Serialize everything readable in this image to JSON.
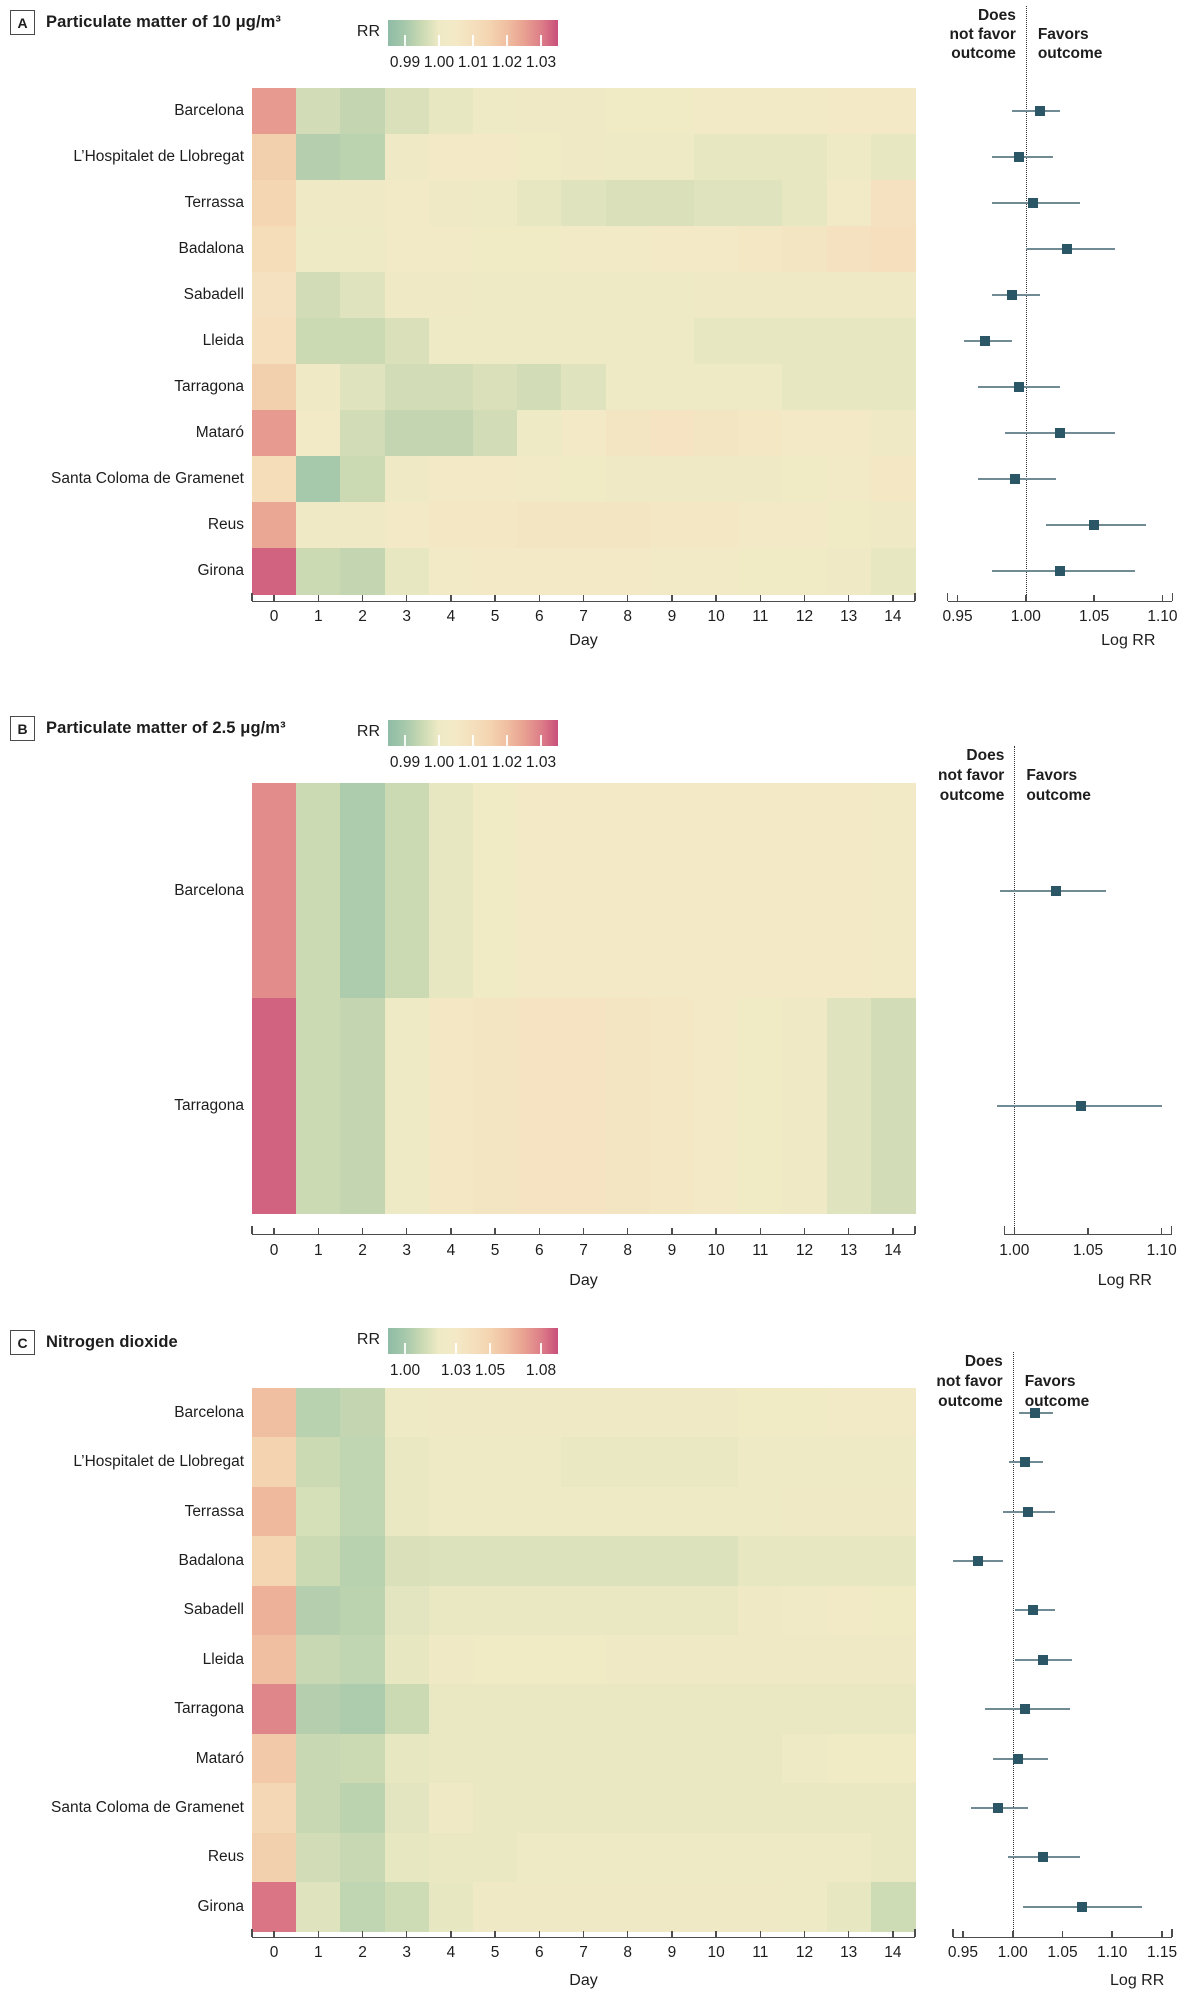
{
  "style": {
    "colormap": [
      [
        0.0,
        "#8fbca6"
      ],
      [
        0.1,
        "#a6c8ab"
      ],
      [
        0.2,
        "#cbdab3"
      ],
      [
        0.3,
        "#eeeac5"
      ],
      [
        0.4,
        "#f4e9c6"
      ],
      [
        0.5,
        "#f5dfbd"
      ],
      [
        0.6,
        "#f4d4b0"
      ],
      [
        0.7,
        "#f0bfa1"
      ],
      [
        0.8,
        "#e9a191"
      ],
      [
        0.9,
        "#dd7f88"
      ],
      [
        1.0,
        "#c94f7b"
      ]
    ],
    "marker_color": "#2a5666",
    "ci_color": "#708b94",
    "axis_color": "#4d4d4d",
    "dotted_color": "#333333",
    "text_color": "#1d1d1d"
  },
  "chart_data": [
    {
      "type": "heatmap",
      "tag": "A",
      "title": "Particulate matter of 10 μg/m³",
      "xlabel": "Day",
      "days": [
        0,
        1,
        2,
        3,
        4,
        5,
        6,
        7,
        8,
        9,
        10,
        11,
        12,
        13,
        14
      ],
      "scale": {
        "label": "RR",
        "domain": [
          0.985,
          1.035
        ],
        "ticks": [
          0.99,
          1.0,
          1.01,
          1.02,
          1.03
        ],
        "tick_labels": [
          "0.99",
          "1.00",
          "1.01",
          "1.02",
          "1.03"
        ]
      },
      "cities": [
        "Barcelona",
        "L’Hospitalet de Llobregat",
        "Terrassa",
        "Badalona",
        "Sabadell",
        "Lleida",
        "Tarragona",
        "Mataró",
        "Santa Coloma de Gramenet",
        "Reus",
        "Girona"
      ],
      "rr_matrix": [
        [
          1.026,
          0.996,
          0.994,
          0.997,
          0.999,
          1.0,
          1.001,
          1.001,
          1.002,
          1.002,
          1.003,
          1.003,
          1.003,
          1.004,
          1.004
        ],
        [
          1.016,
          0.992,
          0.993,
          1.001,
          1.004,
          1.004,
          1.002,
          1.001,
          1.0,
          1.0,
          0.999,
          0.999,
          0.999,
          1.0,
          0.999
        ],
        [
          1.014,
          1.001,
          1.001,
          1.003,
          1.001,
          1.0,
          0.999,
          0.998,
          0.997,
          0.997,
          0.998,
          0.998,
          0.999,
          1.003,
          1.009
        ],
        [
          1.011,
          1.0,
          1.0,
          1.003,
          1.003,
          1.002,
          1.002,
          1.003,
          1.003,
          1.004,
          1.005,
          1.006,
          1.007,
          1.009,
          1.01
        ],
        [
          1.009,
          0.996,
          0.998,
          1.001,
          1.001,
          1.0,
          1.0,
          1.0,
          1.0,
          1.0,
          1.001,
          1.001,
          1.001,
          1.001,
          1.001
        ],
        [
          1.01,
          0.995,
          0.995,
          0.997,
          1.0,
          1.0,
          1.0,
          1.0,
          1.0,
          1.0,
          0.999,
          0.999,
          0.999,
          0.999,
          0.999
        ],
        [
          1.016,
          1.001,
          0.998,
          0.996,
          0.996,
          0.997,
          0.996,
          0.998,
          1.0,
          1.0,
          1.0,
          1.0,
          0.999,
          0.999,
          0.999
        ],
        [
          1.026,
          1.003,
          0.996,
          0.994,
          0.994,
          0.996,
          1.0,
          1.005,
          1.007,
          1.008,
          1.007,
          1.006,
          1.005,
          1.004,
          1.001
        ],
        [
          1.011,
          0.99,
          0.995,
          1.001,
          1.005,
          1.004,
          1.003,
          1.002,
          1.001,
          1.001,
          1.001,
          1.001,
          1.002,
          1.003,
          1.006
        ],
        [
          1.024,
          1.001,
          1.001,
          1.004,
          1.006,
          1.006,
          1.007,
          1.007,
          1.007,
          1.006,
          1.006,
          1.005,
          1.004,
          1.002,
          1.001
        ],
        [
          1.033,
          0.995,
          0.994,
          0.999,
          1.003,
          1.004,
          1.005,
          1.004,
          1.004,
          1.003,
          1.003,
          1.002,
          1.002,
          1.001,
          0.999
        ]
      ],
      "forest": {
        "header_left": "Does\nnot favor\noutcome",
        "header_right": "Favors\noutcome",
        "axis_label": "Log RR",
        "reference": 1.0,
        "axis_domain": [
          0.943,
          1.107
        ],
        "axis_ticks": [
          0.95,
          1.0,
          1.05,
          1.1
        ],
        "axis_tick_labels": [
          "0.95",
          "1.00",
          "1.05",
          "1.10"
        ],
        "estimates": [
          {
            "city": "Barcelona",
            "rr": 1.01,
            "ci": [
              0.99,
              1.025
            ]
          },
          {
            "city": "L’Hospitalet de Llobregat",
            "rr": 0.995,
            "ci": [
              0.975,
              1.02
            ]
          },
          {
            "city": "Terrassa",
            "rr": 1.005,
            "ci": [
              0.975,
              1.04
            ]
          },
          {
            "city": "Badalona",
            "rr": 1.03,
            "ci": [
              1.0,
              1.065
            ]
          },
          {
            "city": "Sabadell",
            "rr": 0.99,
            "ci": [
              0.975,
              1.01
            ]
          },
          {
            "city": "Lleida",
            "rr": 0.97,
            "ci": [
              0.955,
              0.99
            ]
          },
          {
            "city": "Tarragona",
            "rr": 0.995,
            "ci": [
              0.965,
              1.025
            ]
          },
          {
            "city": "Mataró",
            "rr": 1.025,
            "ci": [
              0.985,
              1.065
            ]
          },
          {
            "city": "Santa Coloma de Gramenet",
            "rr": 0.992,
            "ci": [
              0.965,
              1.022
            ]
          },
          {
            "city": "Reus",
            "rr": 1.05,
            "ci": [
              1.015,
              1.088
            ]
          },
          {
            "city": "Girona",
            "rr": 1.025,
            "ci": [
              0.975,
              1.08
            ]
          }
        ]
      }
    },
    {
      "type": "heatmap",
      "tag": "B",
      "title": "Particulate matter of 2.5 μg/m³",
      "xlabel": "Day",
      "days": [
        0,
        1,
        2,
        3,
        4,
        5,
        6,
        7,
        8,
        9,
        10,
        11,
        12,
        13,
        14
      ],
      "scale": {
        "label": "RR",
        "domain": [
          0.985,
          1.035
        ],
        "ticks": [
          0.99,
          1.0,
          1.01,
          1.02,
          1.03
        ],
        "tick_labels": [
          "0.99",
          "1.00",
          "1.01",
          "1.02",
          "1.03"
        ]
      },
      "cities": [
        "Barcelona",
        "Tarragona"
      ],
      "rr_matrix": [
        [
          1.028,
          0.995,
          0.991,
          0.995,
          0.999,
          1.002,
          1.004,
          1.005,
          1.005,
          1.005,
          1.005,
          1.005,
          1.005,
          1.004,
          1.003
        ],
        [
          1.033,
          0.995,
          0.994,
          1.0,
          1.006,
          1.007,
          1.008,
          1.008,
          1.007,
          1.006,
          1.004,
          1.002,
          1.001,
          0.998,
          0.996
        ]
      ],
      "forest": {
        "header_left": "Does\nnot favor\noutcome",
        "header_right": "Favors\noutcome",
        "axis_label": "Log RR",
        "reference": 1.0,
        "axis_domain": [
          0.955,
          1.107
        ],
        "axis_ticks": [
          1.0,
          1.05,
          1.1
        ],
        "axis_tick_labels": [
          "1.00",
          "1.05",
          "1.10"
        ],
        "estimates": [
          {
            "city": "Barcelona",
            "rr": 1.028,
            "ci": [
              0.99,
              1.062
            ]
          },
          {
            "city": "Tarragona",
            "rr": 1.045,
            "ci": [
              0.988,
              1.1
            ]
          }
        ]
      }
    },
    {
      "type": "heatmap",
      "tag": "C",
      "title": "Nitrogen dioxide",
      "xlabel": "Day",
      "days": [
        0,
        1,
        2,
        3,
        4,
        5,
        6,
        7,
        8,
        9,
        10,
        11,
        12,
        13,
        14
      ],
      "scale": {
        "label": "RR",
        "domain": [
          0.99,
          1.09
        ],
        "ticks": [
          1.0,
          1.03,
          1.05,
          1.08
        ],
        "tick_labels": [
          "1.00",
          "1.03",
          "1.05",
          "1.08"
        ]
      },
      "cities": [
        "Barcelona",
        "L’Hospitalet de Llobregat",
        "Terrassa",
        "Badalona",
        "Sabadell",
        "Lleida",
        "Tarragona",
        "Mataró",
        "Santa Coloma de Gramenet",
        "Reus",
        "Girona"
      ],
      "rr_matrix": [
        [
          1.06,
          1.005,
          1.008,
          1.02,
          1.021,
          1.021,
          1.022,
          1.022,
          1.022,
          1.022,
          1.022,
          1.023,
          1.023,
          1.026,
          1.026
        ],
        [
          1.05,
          1.01,
          1.007,
          1.019,
          1.02,
          1.02,
          1.02,
          1.019,
          1.019,
          1.019,
          1.019,
          1.02,
          1.02,
          1.02,
          1.02
        ],
        [
          1.062,
          1.013,
          1.007,
          1.019,
          1.02,
          1.02,
          1.02,
          1.02,
          1.02,
          1.02,
          1.02,
          1.02,
          1.021,
          1.021,
          1.021
        ],
        [
          1.048,
          1.01,
          1.005,
          1.014,
          1.015,
          1.015,
          1.015,
          1.015,
          1.015,
          1.015,
          1.015,
          1.018,
          1.018,
          1.018,
          1.018
        ],
        [
          1.065,
          1.004,
          1.006,
          1.017,
          1.019,
          1.019,
          1.019,
          1.019,
          1.019,
          1.019,
          1.019,
          1.022,
          1.025,
          1.026,
          1.024
        ],
        [
          1.06,
          1.009,
          1.007,
          1.018,
          1.021,
          1.023,
          1.023,
          1.023,
          1.022,
          1.022,
          1.021,
          1.021,
          1.021,
          1.021,
          1.021
        ],
        [
          1.078,
          1.004,
          1.002,
          1.01,
          1.019,
          1.019,
          1.019,
          1.019,
          1.019,
          1.019,
          1.019,
          1.019,
          1.019,
          1.019,
          1.019
        ],
        [
          1.055,
          1.009,
          1.01,
          1.018,
          1.019,
          1.019,
          1.019,
          1.019,
          1.019,
          1.019,
          1.019,
          1.019,
          1.02,
          1.024,
          1.024
        ],
        [
          1.046,
          1.009,
          1.006,
          1.017,
          1.021,
          1.019,
          1.019,
          1.019,
          1.019,
          1.019,
          1.019,
          1.019,
          1.019,
          1.019,
          1.019
        ],
        [
          1.052,
          1.012,
          1.009,
          1.018,
          1.019,
          1.019,
          1.02,
          1.02,
          1.02,
          1.02,
          1.02,
          1.02,
          1.02,
          1.02,
          1.019
        ],
        [
          1.082,
          1.016,
          1.007,
          1.011,
          1.018,
          1.021,
          1.021,
          1.022,
          1.022,
          1.022,
          1.021,
          1.021,
          1.02,
          1.018,
          1.011
        ]
      ],
      "forest": {
        "header_left": "Does\nnot favor\noutcome",
        "header_right": "Favors\noutcome",
        "axis_label": "Log RR",
        "reference": 1.0,
        "axis_domain": [
          0.935,
          1.16
        ],
        "axis_ticks": [
          0.95,
          1.0,
          1.05,
          1.1,
          1.15
        ],
        "axis_tick_labels": [
          "0.95",
          "1.00",
          "1.05",
          "1.10",
          "1.15"
        ],
        "estimates": [
          {
            "city": "Barcelona",
            "rr": 1.022,
            "ci": [
              1.006,
              1.04
            ]
          },
          {
            "city": "L’Hospitalet de Llobregat",
            "rr": 1.012,
            "ci": [
              0.996,
              1.03
            ]
          },
          {
            "city": "Terrassa",
            "rr": 1.015,
            "ci": [
              0.99,
              1.042
            ]
          },
          {
            "city": "Badalona",
            "rr": 0.965,
            "ci": [
              0.94,
              0.99
            ]
          },
          {
            "city": "Sabadell",
            "rr": 1.02,
            "ci": [
              1.002,
              1.042
            ]
          },
          {
            "city": "Lleida",
            "rr": 1.03,
            "ci": [
              1.002,
              1.06
            ]
          },
          {
            "city": "Tarragona",
            "rr": 1.012,
            "ci": [
              0.972,
              1.058
            ]
          },
          {
            "city": "Mataró",
            "rr": 1.005,
            "ci": [
              0.98,
              1.035
            ]
          },
          {
            "city": "Santa Coloma de Gramenet",
            "rr": 0.985,
            "ci": [
              0.958,
              1.015
            ]
          },
          {
            "city": "Reus",
            "rr": 1.03,
            "ci": [
              0.995,
              1.068
            ]
          },
          {
            "city": "Girona",
            "rr": 1.07,
            "ci": [
              1.01,
              1.13
            ]
          }
        ]
      }
    }
  ]
}
